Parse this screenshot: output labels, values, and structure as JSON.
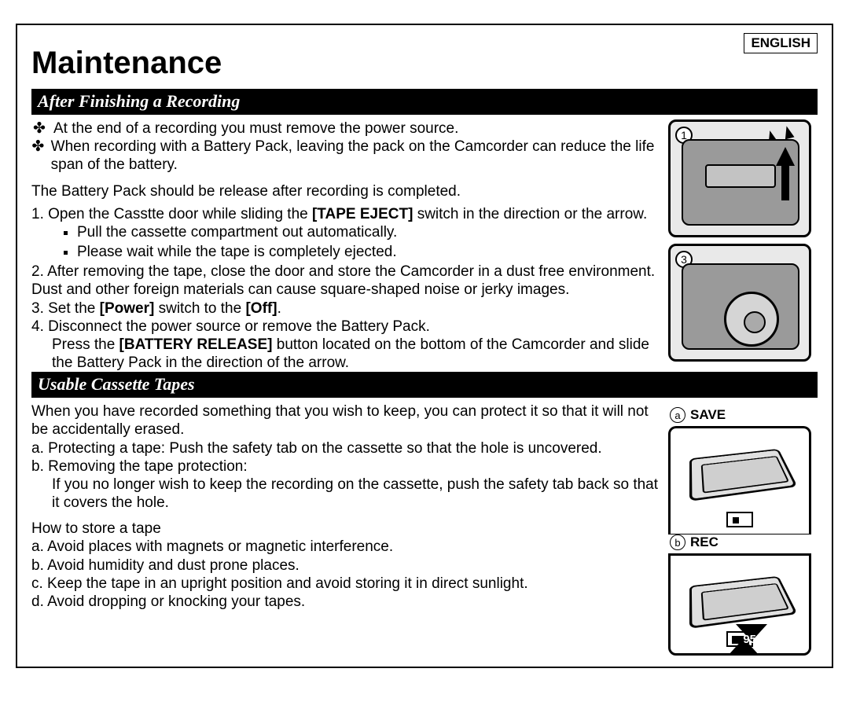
{
  "language_label": "ENGLISH",
  "title": "Maintenance",
  "page_number": "95",
  "section1": {
    "heading": "After Finishing a Recording",
    "bullets": [
      "At the end of a recording you must remove the power source.",
      "When recording with a Battery Pack, leaving the pack on the Camcorder can reduce the life span of the battery."
    ],
    "intro": "The Battery Pack should be release after recording is completed.",
    "step1_pre": "1. Open the Casstte door while sliding the ",
    "step1_bold": "[TAPE EJECT]",
    "step1_post": " switch in the direction or the arrow.",
    "step1_sub": [
      "Pull the cassette compartment out automatically.",
      "Please wait while the tape is completely ejected."
    ],
    "step2": "2. After removing the tape, close the door and store the Camcorder in a dust free environment. Dust and other foreign materials can cause square-shaped noise or jerky images.",
    "step3_pre": "3. Set the ",
    "step3_b1": "[Power]",
    "step3_mid": " switch to the ",
    "step3_b2": "[Off]",
    "step3_post": ".",
    "step4_line1": "4. Disconnect the power source or remove the Battery Pack.",
    "step4_line2_pre": "Press the ",
    "step4_line2_bold": "[BATTERY RELEASE]",
    "step4_line2_post": " button located on the bottom of the Camcorder and slide the Battery Pack in the direction of the arrow."
  },
  "section2": {
    "heading": "Usable Cassette Tapes",
    "p1": "When you have recorded something that you wish to keep, you can protect it so that it will not be accidentally erased.",
    "pa": "a. Protecting a tape: Push the safety tab on the cassette so that the hole is uncovered.",
    "pb": "b. Removing the tape protection:",
    "pb2": "If you no longer wish to keep the recording on the cassette, push the safety tab back so that it covers the hole.",
    "store_h": "How to store a tape",
    "sa": "a. Avoid places with magnets or magnetic interference.",
    "sb": "b. Avoid humidity and dust prone places.",
    "sc": "c. Keep the tape in an upright position and avoid storing it in direct sunlight.",
    "sd": "d. Avoid dropping or knocking your tapes."
  },
  "illus": {
    "num1": "1",
    "num3": "3",
    "a_letter": "a",
    "a_label": "SAVE",
    "b_letter": "b",
    "b_label": "REC"
  }
}
